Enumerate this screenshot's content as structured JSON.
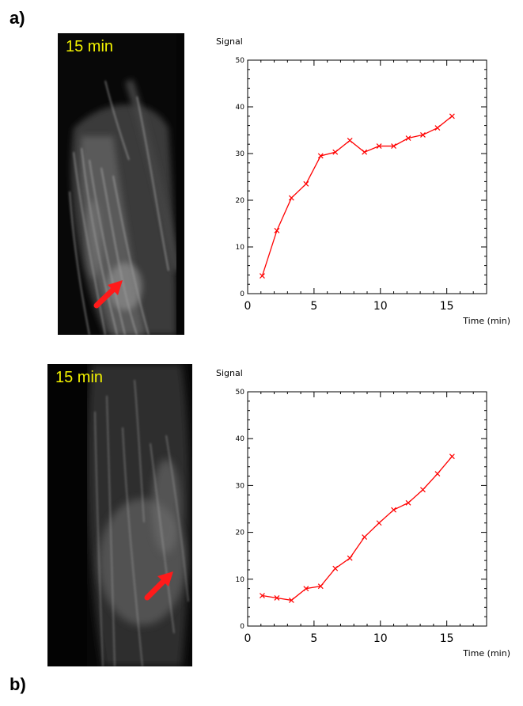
{
  "labels": {
    "a": "a)",
    "b": "b)"
  },
  "panels": [
    {
      "time_label": "15 min"
    },
    {
      "time_label": "15 min"
    }
  ],
  "chart_data": [
    {
      "type": "line",
      "title": "",
      "ylabel": "Signal",
      "xlabel": "Time (min)",
      "xlim": [
        0,
        18
      ],
      "ylim": [
        0,
        50
      ],
      "x_ticks": [
        0,
        5,
        10,
        15
      ],
      "y_ticks": [
        0,
        10,
        20,
        30,
        40,
        50
      ],
      "grid": false,
      "line_color": "#ff0000",
      "series": [
        {
          "x": [
            1.1,
            2.2,
            3.3,
            4.4,
            5.5,
            6.6,
            7.7,
            8.8,
            9.9,
            11.0,
            12.1,
            13.2,
            14.3,
            15.4
          ],
          "y": [
            3.8,
            13.5,
            20.5,
            23.5,
            29.5,
            30.3,
            32.8,
            30.3,
            31.6,
            31.6,
            33.3,
            34.0,
            35.5,
            38.0
          ]
        }
      ]
    },
    {
      "type": "line",
      "title": "",
      "ylabel": "Signal",
      "xlabel": "Time (min)",
      "xlim": [
        0,
        18
      ],
      "ylim": [
        0,
        50
      ],
      "x_ticks": [
        0,
        5,
        10,
        15
      ],
      "y_ticks": [
        0,
        10,
        20,
        30,
        40,
        50
      ],
      "grid": false,
      "line_color": "#ff0000",
      "series": [
        {
          "x": [
            1.1,
            2.2,
            3.3,
            4.4,
            5.5,
            6.6,
            7.7,
            8.8,
            9.9,
            11.0,
            12.1,
            13.2,
            14.3,
            15.4
          ],
          "y": [
            6.5,
            6.0,
            5.5,
            8.0,
            8.5,
            12.3,
            14.5,
            19.0,
            22.0,
            24.8,
            26.3,
            29.1,
            32.5,
            36.2
          ]
        }
      ]
    }
  ]
}
